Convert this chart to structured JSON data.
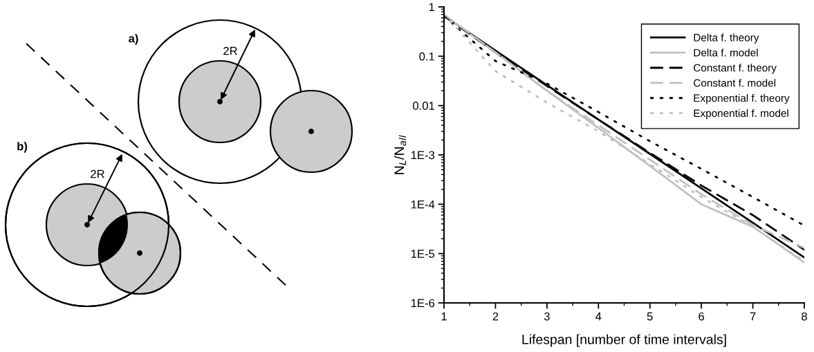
{
  "chart_data": [
    {
      "type": "other",
      "annotations": [
        "a)",
        "2R",
        "b)",
        "2R"
      ]
    },
    {
      "type": "line",
      "xlabel": "Lifespan [number of time intervals]",
      "ylabel": "N$_{L}$/N$_{all}$",
      "log": "y",
      "x": [
        1,
        2,
        3,
        4,
        5,
        6,
        7,
        8
      ],
      "xlim": [
        1,
        8
      ],
      "xticks": [
        1,
        2,
        3,
        4,
        5,
        6,
        7,
        8
      ],
      "ylim": [
        1e-06,
        1
      ],
      "yticks": [
        {
          "value": 1,
          "label": "1"
        },
        {
          "value": 0.1,
          "label": "0.1"
        },
        {
          "value": 0.01,
          "label": "0.01"
        },
        {
          "value": 0.001,
          "label": "1E-3"
        },
        {
          "value": 0.0001,
          "label": "1E-4"
        },
        {
          "value": 1e-05,
          "label": "1E-5"
        },
        {
          "value": 1e-06,
          "label": "1E-6"
        }
      ],
      "grid": false,
      "legend": "top right",
      "series": [
        {
          "name": "Delta f. theory",
          "color": "#000000",
          "line_style": "solid",
          "values": [
            0.66,
            0.13,
            0.026,
            0.0052,
            0.00105,
            0.00021,
            4.2e-05,
            8.3e-06
          ]
        },
        {
          "name": "Delta f. model",
          "color": "#c0c0c0",
          "line_style": "solid",
          "values": [
            0.68,
            0.12,
            0.02,
            0.0035,
            0.0006,
            0.0001,
            3.5e-05,
            6.6e-06
          ]
        },
        {
          "name": "Constant f. theory",
          "color": "#000000",
          "line_style": "dashed",
          "values": [
            0.66,
            0.12,
            0.025,
            0.0052,
            0.0011,
            0.00024,
            6e-05,
            1.2e-05
          ]
        },
        {
          "name": "Constant f. model",
          "color": "#c0c0c0",
          "line_style": "dashed",
          "values": [
            0.7,
            0.12,
            0.02,
            0.004,
            0.0008,
            0.00016,
            3.8e-05,
            1.3e-05
          ]
        },
        {
          "name": "Exponential f. theory",
          "color": "#000000",
          "line_style": "dotted",
          "values": [
            0.65,
            0.08,
            0.028,
            0.0074,
            0.0019,
            0.00052,
            0.00014,
            3.7e-05
          ]
        },
        {
          "name": "Exponential f. model",
          "color": "#c0c0c0",
          "line_style": "dotted",
          "values": [
            0.72,
            0.05,
            0.0115,
            0.003,
            0.00065,
            0.00014,
            3.5e-05,
            7e-06
          ]
        }
      ]
    }
  ]
}
